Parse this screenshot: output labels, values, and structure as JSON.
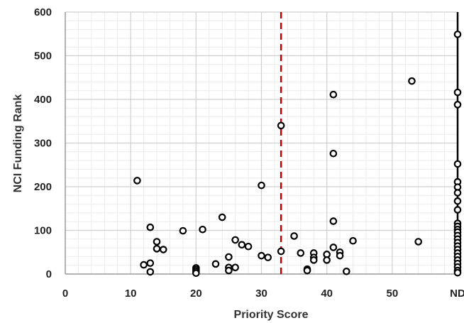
{
  "chart_data": {
    "type": "scatter",
    "title": "",
    "xlabel": "Priority Score",
    "ylabel": "NCI Funding Rank",
    "xlim": [
      0,
      60
    ],
    "ylim": [
      0,
      600
    ],
    "x_ticks": [
      "0",
      "10",
      "20",
      "30",
      "40",
      "50",
      "ND"
    ],
    "y_ticks": [
      "0",
      "100",
      "200",
      "300",
      "400",
      "500",
      "600"
    ],
    "grid": "major and minor",
    "nd_position": 60,
    "reference_line": {
      "x": 33,
      "style": "dashed",
      "color": "#c00000"
    },
    "marker": {
      "shape": "open-circle",
      "color": "#000000"
    },
    "points": [
      {
        "x": 11,
        "y": 214
      },
      {
        "x": 12,
        "y": 21
      },
      {
        "x": 13,
        "y": 107
      },
      {
        "x": 13,
        "y": 25
      },
      {
        "x": 13,
        "y": 5
      },
      {
        "x": 14,
        "y": 74
      },
      {
        "x": 14,
        "y": 58
      },
      {
        "x": 15,
        "y": 56
      },
      {
        "x": 18,
        "y": 99
      },
      {
        "x": 20,
        "y": 14
      },
      {
        "x": 20,
        "y": 10
      },
      {
        "x": 20,
        "y": 6
      },
      {
        "x": 20,
        "y": 2
      },
      {
        "x": 21,
        "y": 102
      },
      {
        "x": 23,
        "y": 23
      },
      {
        "x": 24,
        "y": 130
      },
      {
        "x": 25,
        "y": 39
      },
      {
        "x": 25,
        "y": 15
      },
      {
        "x": 25,
        "y": 8
      },
      {
        "x": 26,
        "y": 78
      },
      {
        "x": 26,
        "y": 15
      },
      {
        "x": 27,
        "y": 67
      },
      {
        "x": 28,
        "y": 63
      },
      {
        "x": 30,
        "y": 203
      },
      {
        "x": 30,
        "y": 42
      },
      {
        "x": 31,
        "y": 38
      },
      {
        "x": 33,
        "y": 340
      },
      {
        "x": 33,
        "y": 52
      },
      {
        "x": 35,
        "y": 87
      },
      {
        "x": 36,
        "y": 48
      },
      {
        "x": 37,
        "y": 11
      },
      {
        "x": 37,
        "y": 8
      },
      {
        "x": 38,
        "y": 48
      },
      {
        "x": 38,
        "y": 38
      },
      {
        "x": 38,
        "y": 32
      },
      {
        "x": 40,
        "y": 45
      },
      {
        "x": 40,
        "y": 32
      },
      {
        "x": 41,
        "y": 411
      },
      {
        "x": 41,
        "y": 276
      },
      {
        "x": 41,
        "y": 121
      },
      {
        "x": 41,
        "y": 61
      },
      {
        "x": 42,
        "y": 50
      },
      {
        "x": 42,
        "y": 42
      },
      {
        "x": 43,
        "y": 6
      },
      {
        "x": 44,
        "y": 76
      },
      {
        "x": 53,
        "y": 442
      },
      {
        "x": 54,
        "y": 74
      },
      {
        "x": 60,
        "y": 549
      },
      {
        "x": 60,
        "y": 416
      },
      {
        "x": 60,
        "y": 388
      },
      {
        "x": 60,
        "y": 252
      },
      {
        "x": 60,
        "y": 211
      },
      {
        "x": 60,
        "y": 199
      },
      {
        "x": 60,
        "y": 186
      },
      {
        "x": 60,
        "y": 167
      },
      {
        "x": 60,
        "y": 147
      },
      {
        "x": 60,
        "y": 116
      },
      {
        "x": 60,
        "y": 109
      },
      {
        "x": 60,
        "y": 102
      },
      {
        "x": 60,
        "y": 96
      },
      {
        "x": 60,
        "y": 88
      },
      {
        "x": 60,
        "y": 80
      },
      {
        "x": 60,
        "y": 72
      },
      {
        "x": 60,
        "y": 64
      },
      {
        "x": 60,
        "y": 56
      },
      {
        "x": 60,
        "y": 48
      },
      {
        "x": 60,
        "y": 40
      },
      {
        "x": 60,
        "y": 32
      },
      {
        "x": 60,
        "y": 24
      },
      {
        "x": 60,
        "y": 16
      },
      {
        "x": 60,
        "y": 8
      },
      {
        "x": 60,
        "y": 3
      }
    ]
  }
}
